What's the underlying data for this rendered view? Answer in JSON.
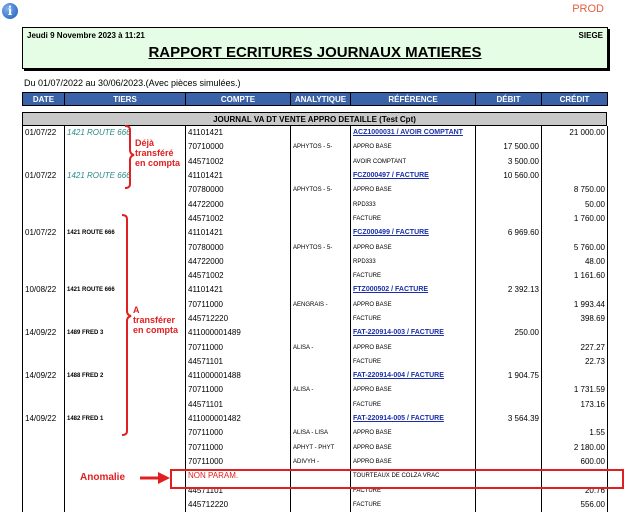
{
  "prod": "PROD",
  "header": {
    "date": "Jeudi 9 Novembre 2023 à 11:21",
    "site": "SIEGE",
    "title": "RAPPORT ECRITURES JOURNAUX MATIERES"
  },
  "period": "Du 01/07/2022 au 30/06/2023.(Avec pièces simulées.)",
  "columns": [
    "DATE",
    "TIERS",
    "COMPTE",
    "ANALYTIQUE",
    "RÉFÉRENCE",
    "DÉBIT",
    "CRÉDIT"
  ],
  "journal": "JOURNAL VA DT VENTE APPRO DETAILLE (Test Cpt)",
  "rows": [
    {
      "date": "01/07/22",
      "tiers": "1421 ROUTE 666",
      "compte": "41101421",
      "analytique": "",
      "reference": "ACZ1000031 / AVOIR COMPTANT",
      "link": true,
      "debit": "",
      "credit": "21 000.00"
    },
    {
      "date": "",
      "tiers": "",
      "compte": "70710000",
      "analytique": "APHYTOS - 5-",
      "reference": "APPRO BASE",
      "debit": "17 500.00",
      "credit": ""
    },
    {
      "date": "",
      "tiers": "",
      "compte": "44571002",
      "analytique": "",
      "reference": "AVOIR COMPTANT",
      "debit": "3 500.00",
      "credit": ""
    },
    {
      "date": "01/07/22",
      "tiers": "1421 ROUTE 666",
      "compte": "41101421",
      "analytique": "",
      "reference": "FCZ000497 / FACTURE",
      "link": true,
      "debit": "10 560.00",
      "credit": ""
    },
    {
      "date": "",
      "tiers": "",
      "compte": "70780000",
      "analytique": "APHYTOS - 5-",
      "reference": "APPRO BASE",
      "debit": "",
      "credit": "8 750.00"
    },
    {
      "date": "",
      "tiers": "",
      "compte": "44722000",
      "analytique": "",
      "reference": "RPD333",
      "debit": "",
      "credit": "50.00"
    },
    {
      "date": "",
      "tiers": "",
      "compte": "44571002",
      "analytique": "",
      "reference": "FACTURE",
      "debit": "",
      "credit": "1 760.00"
    },
    {
      "date": "01/07/22",
      "tiers": "1421 ROUTE 666",
      "compte": "41101421",
      "analytique": "",
      "reference": "FCZ000499 / FACTURE",
      "link": true,
      "debit": "6 969.60",
      "credit": ""
    },
    {
      "date": "",
      "tiers": "",
      "compte": "70780000",
      "analytique": "APHYTOS - 5-",
      "reference": "APPRO BASE",
      "debit": "",
      "credit": "5 760.00"
    },
    {
      "date": "",
      "tiers": "",
      "compte": "44722000",
      "analytique": "",
      "reference": "RPD333",
      "debit": "",
      "credit": "48.00"
    },
    {
      "date": "",
      "tiers": "",
      "compte": "44571002",
      "analytique": "",
      "reference": "FACTURE",
      "debit": "",
      "credit": "1 161.60"
    },
    {
      "date": "10/08/22",
      "tiers": "1421 ROUTE 666",
      "compte": "41101421",
      "analytique": "",
      "reference": "FTZ000502 / FACTURE",
      "link": true,
      "debit": "2 392.13",
      "credit": ""
    },
    {
      "date": "",
      "tiers": "",
      "compte": "70711000",
      "analytique": "AENGRAIS -",
      "reference": "APPRO BASE",
      "debit": "",
      "credit": "1 993.44"
    },
    {
      "date": "",
      "tiers": "",
      "compte": "445712220",
      "analytique": "",
      "reference": "FACTURE",
      "debit": "",
      "credit": "398.69"
    },
    {
      "date": "14/09/22",
      "tiers": "1489 FRED 3",
      "compte": "411000001489",
      "analytique": "",
      "reference": "FAT-220914-003 / FACTURE",
      "link": true,
      "debit": "250.00",
      "credit": ""
    },
    {
      "date": "",
      "tiers": "",
      "compte": "70711000",
      "analytique": "ALISA -",
      "reference": "APPRO BASE",
      "debit": "",
      "credit": "227.27"
    },
    {
      "date": "",
      "tiers": "",
      "compte": "44571101",
      "analytique": "",
      "reference": "FACTURE",
      "debit": "",
      "credit": "22.73"
    },
    {
      "date": "14/09/22",
      "tiers": "1488 FRED 2",
      "compte": "411000001488",
      "analytique": "",
      "reference": "FAT-220914-004 / FACTURE",
      "link": true,
      "debit": "1 904.75",
      "credit": ""
    },
    {
      "date": "",
      "tiers": "",
      "compte": "70711000",
      "analytique": "ALISA -",
      "reference": "APPRO BASE",
      "debit": "",
      "credit": "1 731.59"
    },
    {
      "date": "",
      "tiers": "",
      "compte": "44571101",
      "analytique": "",
      "reference": "FACTURE",
      "debit": "",
      "credit": "173.16"
    },
    {
      "date": "14/09/22",
      "tiers": "1482 FRED 1",
      "compte": "411000001482",
      "analytique": "",
      "reference": "FAT-220914-005 / FACTURE",
      "link": true,
      "debit": "3 564.39",
      "credit": ""
    },
    {
      "date": "",
      "tiers": "",
      "compte": "70711000",
      "analytique": "ALISA - LISA",
      "reference": "APPRO BASE",
      "debit": "",
      "credit": "1.55"
    },
    {
      "date": "",
      "tiers": "",
      "compte": "70711000",
      "analytique": "APHYT - PHYT",
      "reference": "APPRO BASE",
      "debit": "",
      "credit": "2 180.00"
    },
    {
      "date": "",
      "tiers": "",
      "compte": "70711000",
      "analytique": "ADIVYH -",
      "reference": "APPRO BASE",
      "debit": "",
      "credit": "600.00"
    },
    {
      "date": "",
      "tiers": "",
      "compte": "NON PARAM.",
      "analytique": "",
      "reference": "TOURTEAUX DE COLZA VRAC",
      "debit": "",
      "credit": "",
      "anomaly": true
    },
    {
      "date": "",
      "tiers": "",
      "compte": "44571101",
      "analytique": "",
      "reference": "FACTURE",
      "debit": "",
      "credit": "20.76"
    },
    {
      "date": "",
      "tiers": "",
      "compte": "445712220",
      "analytique": "",
      "reference": "FACTURE",
      "debit": "",
      "credit": "556.00"
    }
  ],
  "annotations": {
    "deja": "Déjà transféré en compta",
    "a_transferer": "A transférer en compta",
    "anomalie": "Anomalie"
  },
  "colors": {
    "header_bg": "#3a62a8",
    "title_bg": "#e4fde4",
    "annotation": "#e02020",
    "link": "#1b2fa8"
  }
}
